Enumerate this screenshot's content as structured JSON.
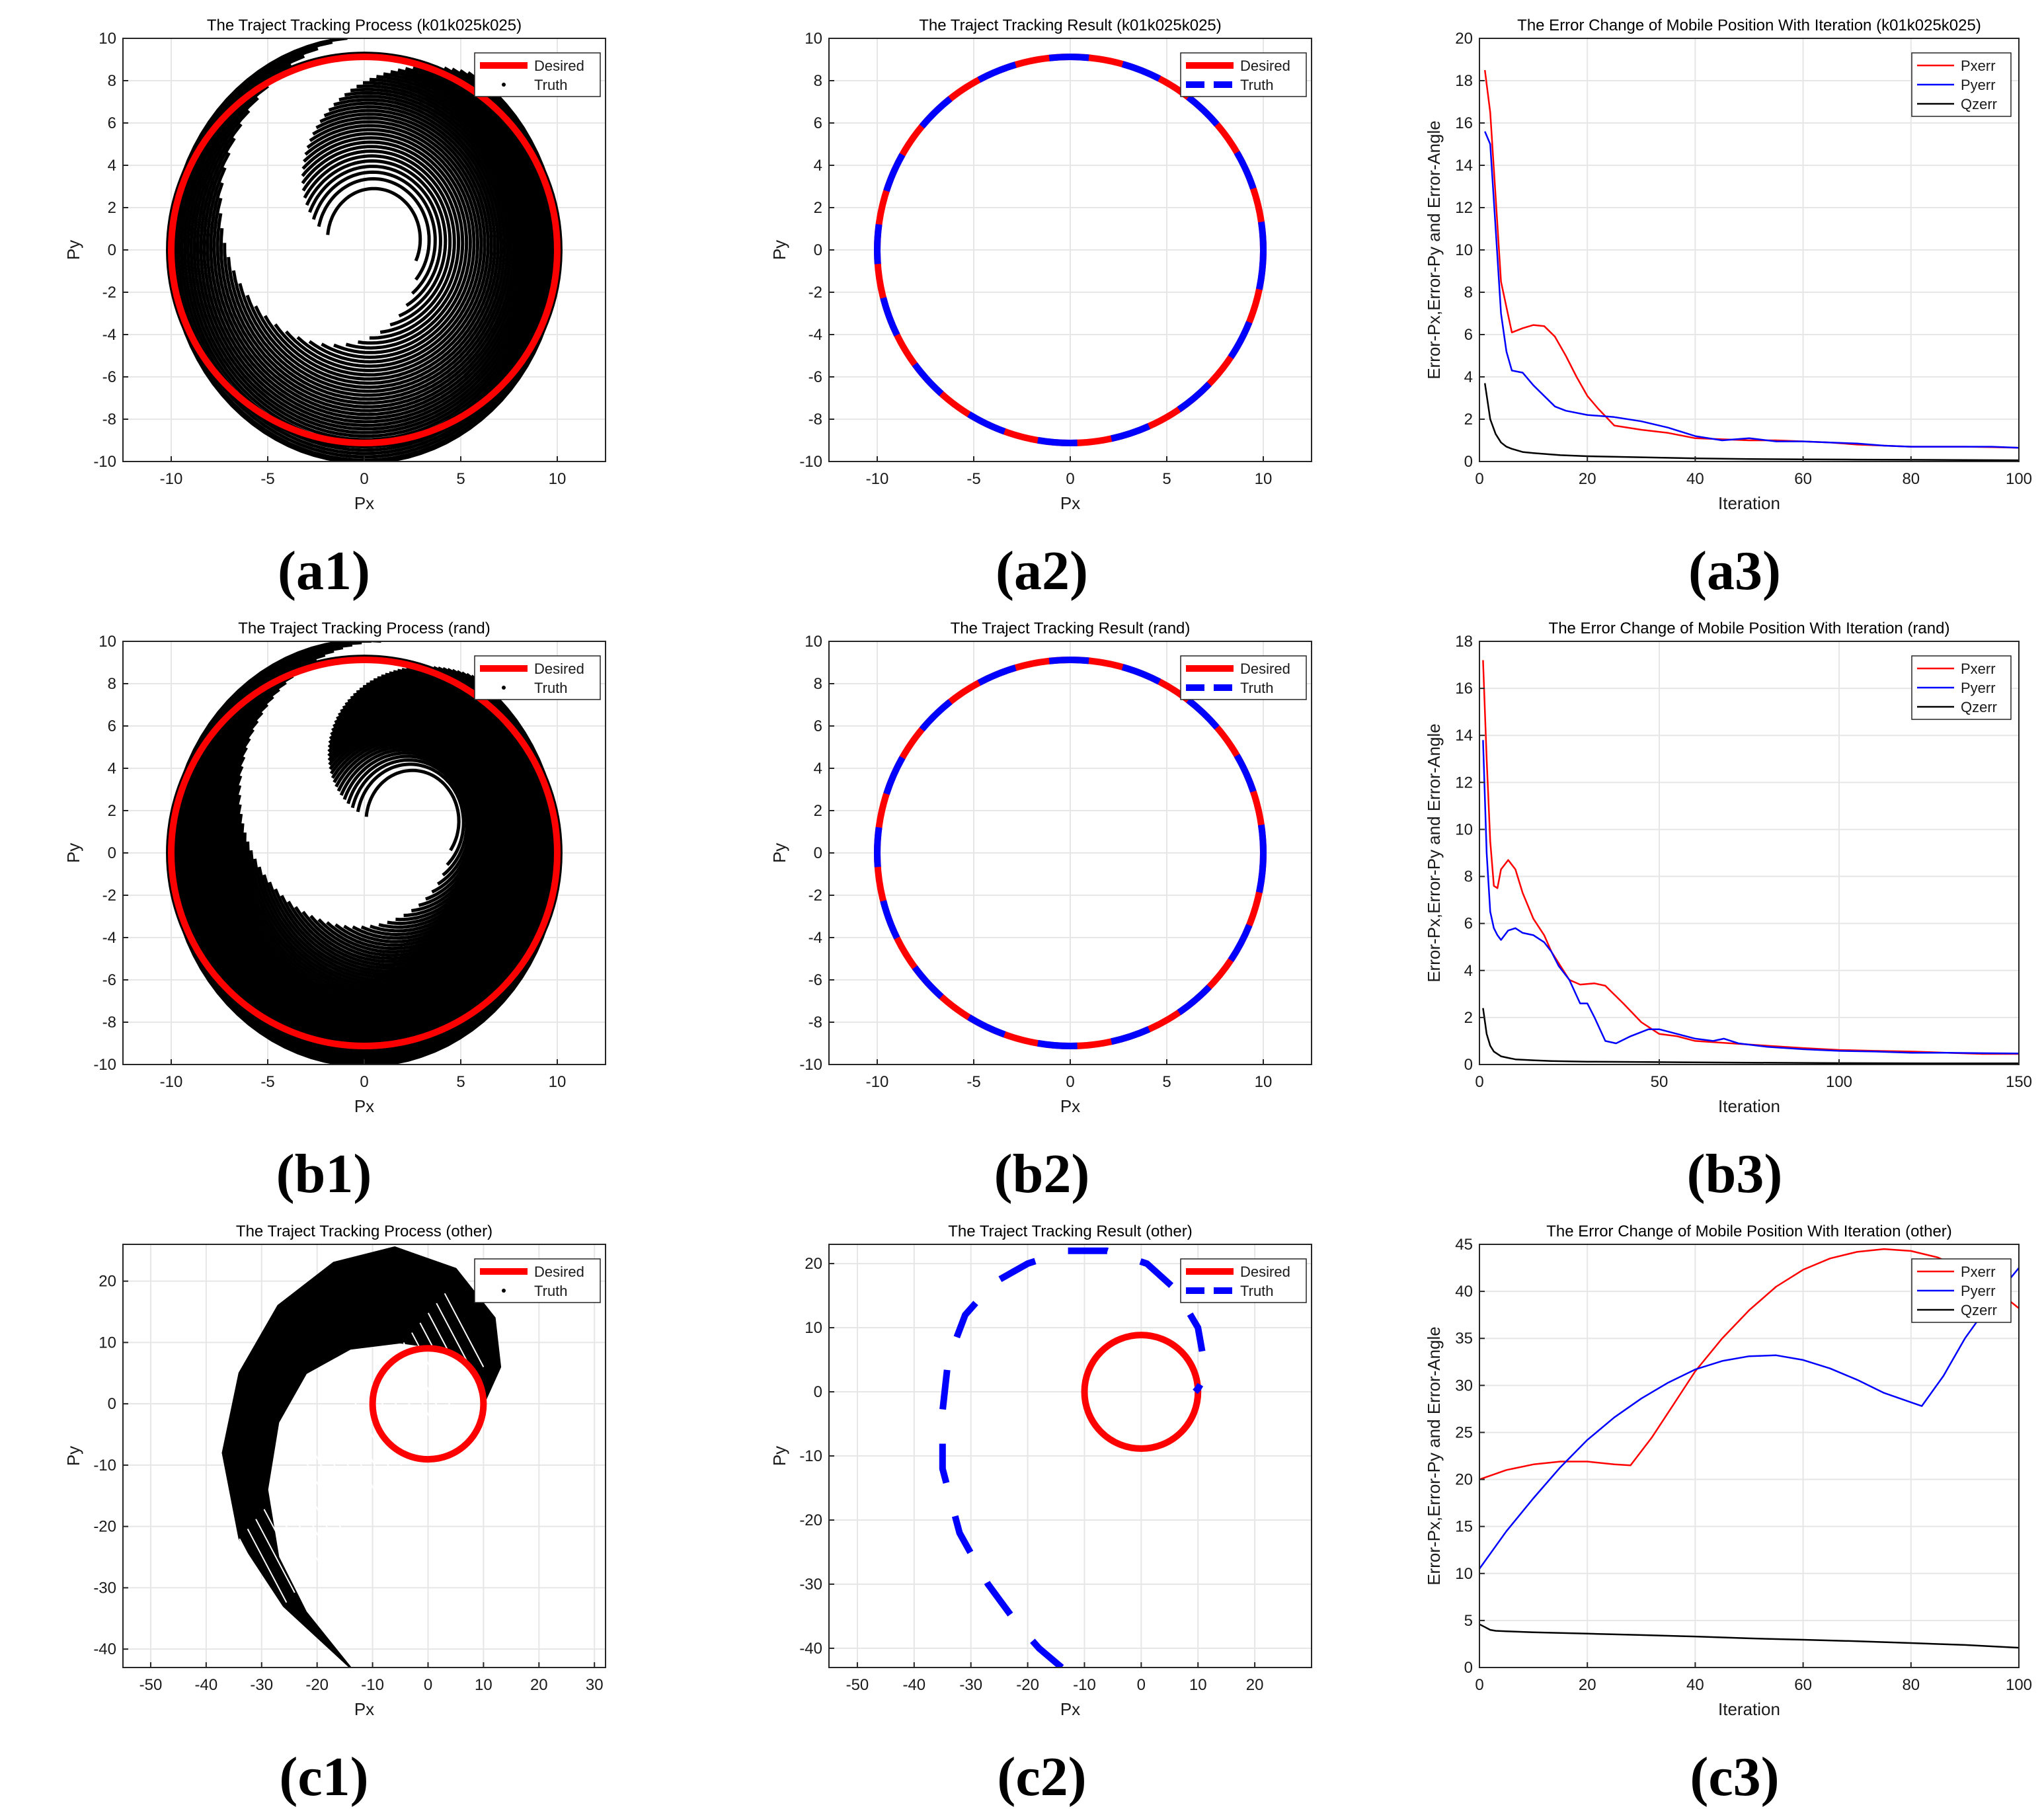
{
  "panel_labels": [
    "(a1)",
    "(a2)",
    "(a3)",
    "(b1)",
    "(b2)",
    "(b3)",
    "(c1)",
    "(c2)",
    "(c3)"
  ],
  "colors": {
    "desired": "#ff0000",
    "truth": "#000000",
    "truth_result": "#0000ff",
    "pxerr": "#ff0000",
    "pyerr": "#0000ff",
    "qzerr": "#000000",
    "grid": "#e6e6e6"
  },
  "chart_data": [
    {
      "id": "a1",
      "type": "scatter",
      "title": "The Traject Tracking Process (k01k025k025)",
      "xlabel": "Px",
      "ylabel": "Py",
      "xlim": [
        -12.5,
        12.5
      ],
      "ylim": [
        -10,
        10
      ],
      "xticks": [
        -10,
        -5,
        0,
        5,
        10
      ],
      "yticks": [
        -10,
        -8,
        -6,
        -4,
        -2,
        0,
        2,
        4,
        6,
        8,
        10
      ],
      "legend": [
        "Desired",
        "Truth"
      ],
      "legend_position": "top-right",
      "grid": true,
      "desired_circle": {
        "center": [
          0,
          0
        ],
        "radius": 10
      },
      "truth_spiral": {
        "start": [
          0.5,
          0.5
        ],
        "end": [
          10,
          0
        ],
        "curves": 40,
        "sweep_deg": 200
      }
    },
    {
      "id": "a2",
      "type": "line",
      "title": "The Traject Tracking Result (k01k025k025)",
      "xlabel": "Px",
      "ylabel": "Py",
      "xlim": [
        -12.5,
        12.5
      ],
      "ylim": [
        -10,
        10
      ],
      "xticks": [
        -10,
        -5,
        0,
        5,
        10
      ],
      "yticks": [
        -10,
        -8,
        -6,
        -4,
        -2,
        0,
        2,
        4,
        6,
        8,
        10
      ],
      "legend": [
        "Desired",
        "Truth"
      ],
      "legend_position": "top-right",
      "grid": true,
      "desired_circle": {
        "center": [
          0,
          0
        ],
        "radius": 10
      },
      "truth_circle": {
        "center": [
          0,
          0
        ],
        "radius": 10
      }
    },
    {
      "id": "a3",
      "type": "line",
      "title": "The Error Change of Mobile Position With Iteration (k01k025k025)",
      "xlabel": "Iteration",
      "ylabel": "Error-Px,Error-Py and Error-Angle",
      "xlim": [
        0,
        100
      ],
      "ylim": [
        0,
        20
      ],
      "xticks": [
        0,
        20,
        40,
        60,
        80,
        100
      ],
      "yticks": [
        0,
        2,
        4,
        6,
        8,
        10,
        12,
        14,
        16,
        18,
        20
      ],
      "legend_position": "top-right",
      "grid": true,
      "series": [
        {
          "name": "Pxerr",
          "x": [
            1,
            2,
            3,
            4,
            6,
            8,
            10,
            12,
            14,
            16,
            18,
            20,
            22,
            25,
            30,
            35,
            40,
            45,
            50,
            55,
            60,
            65,
            70,
            75,
            80,
            85,
            90,
            95,
            100
          ],
          "y": [
            18.5,
            16.5,
            12.5,
            8.5,
            6.1,
            6.3,
            6.45,
            6.4,
            5.9,
            5.0,
            4.0,
            3.1,
            2.5,
            1.7,
            1.5,
            1.35,
            1.1,
            1.05,
            1.0,
            1.0,
            0.95,
            0.9,
            0.8,
            0.75,
            0.7,
            0.7,
            0.7,
            0.68,
            0.65
          ]
        },
        {
          "name": "Pyerr",
          "x": [
            1,
            2,
            3,
            4,
            5,
            6,
            8,
            10,
            12,
            14,
            16,
            20,
            25,
            30,
            35,
            40,
            45,
            50,
            55,
            60,
            65,
            70,
            75,
            80,
            85,
            90,
            95,
            100
          ],
          "y": [
            15.6,
            15.0,
            11.0,
            7.0,
            5.2,
            4.3,
            4.2,
            3.6,
            3.1,
            2.6,
            2.4,
            2.2,
            2.1,
            1.9,
            1.6,
            1.2,
            1.0,
            1.1,
            0.95,
            0.95,
            0.9,
            0.85,
            0.75,
            0.7,
            0.7,
            0.7,
            0.7,
            0.65
          ]
        },
        {
          "name": "Qzerr",
          "x": [
            1,
            2,
            3,
            4,
            5,
            6,
            8,
            10,
            15,
            20,
            30,
            40,
            50,
            60,
            70,
            80,
            90,
            100
          ],
          "y": [
            3.7,
            2.0,
            1.3,
            0.9,
            0.7,
            0.6,
            0.45,
            0.4,
            0.3,
            0.25,
            0.2,
            0.15,
            0.12,
            0.1,
            0.09,
            0.08,
            0.07,
            0.06
          ]
        }
      ]
    },
    {
      "id": "b1",
      "type": "scatter",
      "title": "The Traject Tracking Process (rand)",
      "xlabel": "Px",
      "ylabel": "Py",
      "xlim": [
        -12.5,
        12.5
      ],
      "ylim": [
        -10,
        10
      ],
      "xticks": [
        -10,
        -5,
        0,
        5,
        10
      ],
      "yticks": [
        -10,
        -8,
        -6,
        -4,
        -2,
        0,
        2,
        4,
        6,
        8,
        10
      ],
      "legend": [
        "Desired",
        "Truth"
      ],
      "legend_position": "top-right",
      "grid": true,
      "desired_circle": {
        "center": [
          0,
          0
        ],
        "radius": 10
      },
      "truth_spiral": {
        "start": [
          2.5,
          1.5
        ],
        "end": [
          10,
          0
        ],
        "curves": 60,
        "sweep_deg": 210
      }
    },
    {
      "id": "b2",
      "type": "line",
      "title": "The Traject Tracking Result (rand)",
      "xlabel": "Px",
      "ylabel": "Py",
      "xlim": [
        -12.5,
        12.5
      ],
      "ylim": [
        -10,
        10
      ],
      "xticks": [
        -10,
        -5,
        0,
        5,
        10
      ],
      "yticks": [
        -10,
        -8,
        -6,
        -4,
        -2,
        0,
        2,
        4,
        6,
        8,
        10
      ],
      "legend": [
        "Desired",
        "Truth"
      ],
      "legend_position": "top-right",
      "grid": true,
      "desired_circle": {
        "center": [
          0,
          0
        ],
        "radius": 10
      },
      "truth_circle": {
        "center": [
          0,
          0
        ],
        "radius": 10
      }
    },
    {
      "id": "b3",
      "type": "line",
      "title": "The Error Change of Mobile Position With Iteration (rand)",
      "xlabel": "Iteration",
      "ylabel": "Error-Px,Error-Py and Error-Angle",
      "xlim": [
        0,
        150
      ],
      "ylim": [
        0,
        18
      ],
      "xticks": [
        0,
        50,
        100,
        150
      ],
      "yticks": [
        0,
        2,
        4,
        6,
        8,
        10,
        12,
        14,
        16,
        18
      ],
      "legend_position": "top-right",
      "grid": true,
      "series": [
        {
          "name": "Pxerr",
          "x": [
            1,
            2,
            3,
            4,
            5,
            6,
            8,
            10,
            12,
            15,
            18,
            20,
            25,
            28,
            32,
            35,
            40,
            45,
            50,
            55,
            60,
            70,
            80,
            90,
            100,
            110,
            120,
            130,
            140,
            150
          ],
          "y": [
            17.2,
            13.0,
            9.5,
            7.6,
            7.5,
            8.3,
            8.7,
            8.3,
            7.3,
            6.2,
            5.5,
            4.8,
            3.6,
            3.4,
            3.45,
            3.35,
            2.6,
            1.8,
            1.3,
            1.2,
            1.0,
            0.9,
            0.8,
            0.7,
            0.62,
            0.58,
            0.55,
            0.5,
            0.45,
            0.45
          ]
        },
        {
          "name": "Pyerr",
          "x": [
            1,
            2,
            3,
            4,
            5,
            6,
            8,
            10,
            12,
            15,
            18,
            20,
            22,
            25,
            28,
            30,
            32,
            35,
            38,
            42,
            47,
            50,
            55,
            60,
            65,
            68,
            72,
            80,
            90,
            100,
            110,
            120,
            130,
            140,
            150
          ],
          "y": [
            13.8,
            9.0,
            6.5,
            5.8,
            5.5,
            5.3,
            5.7,
            5.8,
            5.6,
            5.5,
            5.2,
            4.8,
            4.2,
            3.6,
            2.6,
            2.6,
            2.0,
            1.0,
            0.9,
            1.2,
            1.5,
            1.5,
            1.3,
            1.1,
            1.0,
            1.1,
            0.9,
            0.75,
            0.65,
            0.58,
            0.55,
            0.5,
            0.5,
            0.48,
            0.47
          ]
        },
        {
          "name": "Qzerr",
          "x": [
            1,
            2,
            3,
            4,
            6,
            8,
            10,
            15,
            20,
            30,
            50,
            75,
            100,
            125,
            150
          ],
          "y": [
            2.4,
            1.3,
            0.8,
            0.55,
            0.35,
            0.28,
            0.22,
            0.18,
            0.15,
            0.12,
            0.1,
            0.08,
            0.06,
            0.05,
            0.05
          ]
        }
      ]
    },
    {
      "id": "c1",
      "type": "scatter",
      "title": "The Traject Tracking Process (other)",
      "xlabel": "Px",
      "ylabel": "Py",
      "xlim": [
        -55,
        32
      ],
      "ylim": [
        -43,
        26
      ],
      "xticks": [
        -50,
        -40,
        -30,
        -20,
        -10,
        0,
        10,
        20,
        30
      ],
      "yticks": [
        -40,
        -30,
        -20,
        -10,
        0,
        10,
        20
      ],
      "legend": [
        "Desired",
        "Truth"
      ],
      "legend_position": "top-right",
      "grid": true,
      "desired_circle": {
        "center": [
          0,
          0
        ],
        "radius": 10
      },
      "truth_region": {
        "outer_path": [
          [
            10,
            0
          ],
          [
            13,
            6
          ],
          [
            12,
            14
          ],
          [
            5,
            22
          ],
          [
            -6,
            25.5
          ],
          [
            -17,
            23
          ],
          [
            -27,
            16
          ],
          [
            -34,
            5
          ],
          [
            -37,
            -8
          ],
          [
            -34,
            -22
          ],
          [
            -26,
            -33
          ],
          [
            -14,
            -43
          ]
        ],
        "inner_path": [
          [
            -14,
            -43
          ],
          [
            -22,
            -34
          ],
          [
            -27,
            -25
          ],
          [
            -29,
            -14
          ],
          [
            -27,
            -3
          ],
          [
            -22,
            5
          ],
          [
            -14,
            9
          ],
          [
            -5,
            10
          ],
          [
            3,
            9
          ],
          [
            8,
            6
          ],
          [
            10,
            0
          ]
        ]
      }
    },
    {
      "id": "c2",
      "type": "line",
      "title": "The Traject Tracking Result (other)",
      "xlabel": "Px",
      "ylabel": "Py",
      "xlim": [
        -55,
        30
      ],
      "ylim": [
        -43,
        23
      ],
      "xticks": [
        -50,
        -40,
        -30,
        -20,
        -10,
        0,
        10,
        20
      ],
      "yticks": [
        -40,
        -30,
        -20,
        -10,
        0,
        10,
        20
      ],
      "legend": [
        "Desired",
        "Truth"
      ],
      "legend_position": "top-right",
      "grid": true,
      "desired_circle": {
        "center": [
          0,
          0
        ],
        "radius": 10
      },
      "truth_path": {
        "x": [
          -14,
          -18,
          -22,
          -27,
          -32,
          -35,
          -35,
          -34,
          -31,
          -26,
          -20,
          -13,
          -6,
          1,
          6,
          10,
          11,
          11,
          10,
          9.5
        ],
        "y": [
          -43,
          -40,
          -36,
          -30,
          -22,
          -12,
          -3,
          5,
          12,
          17,
          20,
          22,
          22,
          20,
          16,
          10,
          5,
          2,
          0.5,
          0
        ]
      }
    },
    {
      "id": "c3",
      "type": "line",
      "title": "The Error Change of Mobile Position With Iteration (other)",
      "xlabel": "Iteration",
      "ylabel": "Error-Px,Error-Py and Error-Angle",
      "xlim": [
        0,
        100
      ],
      "ylim": [
        0,
        45
      ],
      "xticks": [
        0,
        20,
        40,
        60,
        80,
        100
      ],
      "yticks": [
        0,
        5,
        10,
        15,
        20,
        25,
        30,
        35,
        40,
        45
      ],
      "legend_position": "top-right",
      "grid": true,
      "series": [
        {
          "name": "Pxerr",
          "x": [
            0,
            5,
            10,
            15,
            20,
            25,
            28,
            32,
            36,
            40,
            45,
            50,
            55,
            60,
            65,
            70,
            75,
            80,
            85,
            90,
            95,
            100
          ],
          "y": [
            20.0,
            21.0,
            21.6,
            21.9,
            21.9,
            21.6,
            21.5,
            24.5,
            28.0,
            31.5,
            35.0,
            38.0,
            40.5,
            42.3,
            43.5,
            44.2,
            44.5,
            44.3,
            43.6,
            42.3,
            40.5,
            38.2
          ]
        },
        {
          "name": "Pyerr",
          "x": [
            0,
            5,
            10,
            15,
            20,
            25,
            30,
            35,
            40,
            45,
            50,
            55,
            60,
            65,
            70,
            75,
            80,
            82,
            86,
            90,
            95,
            100
          ],
          "y": [
            10.5,
            14.5,
            18.0,
            21.3,
            24.2,
            26.6,
            28.6,
            30.3,
            31.7,
            32.6,
            33.1,
            33.2,
            32.7,
            31.8,
            30.6,
            29.2,
            28.2,
            27.8,
            31.0,
            35.0,
            39.0,
            42.5
          ]
        },
        {
          "name": "Qzerr",
          "x": [
            0,
            1,
            2,
            3,
            5,
            10,
            20,
            30,
            40,
            50,
            60,
            70,
            80,
            90,
            100
          ],
          "y": [
            4.6,
            4.3,
            4.0,
            3.9,
            3.85,
            3.75,
            3.6,
            3.45,
            3.3,
            3.1,
            2.95,
            2.8,
            2.6,
            2.4,
            2.1
          ]
        }
      ]
    }
  ]
}
